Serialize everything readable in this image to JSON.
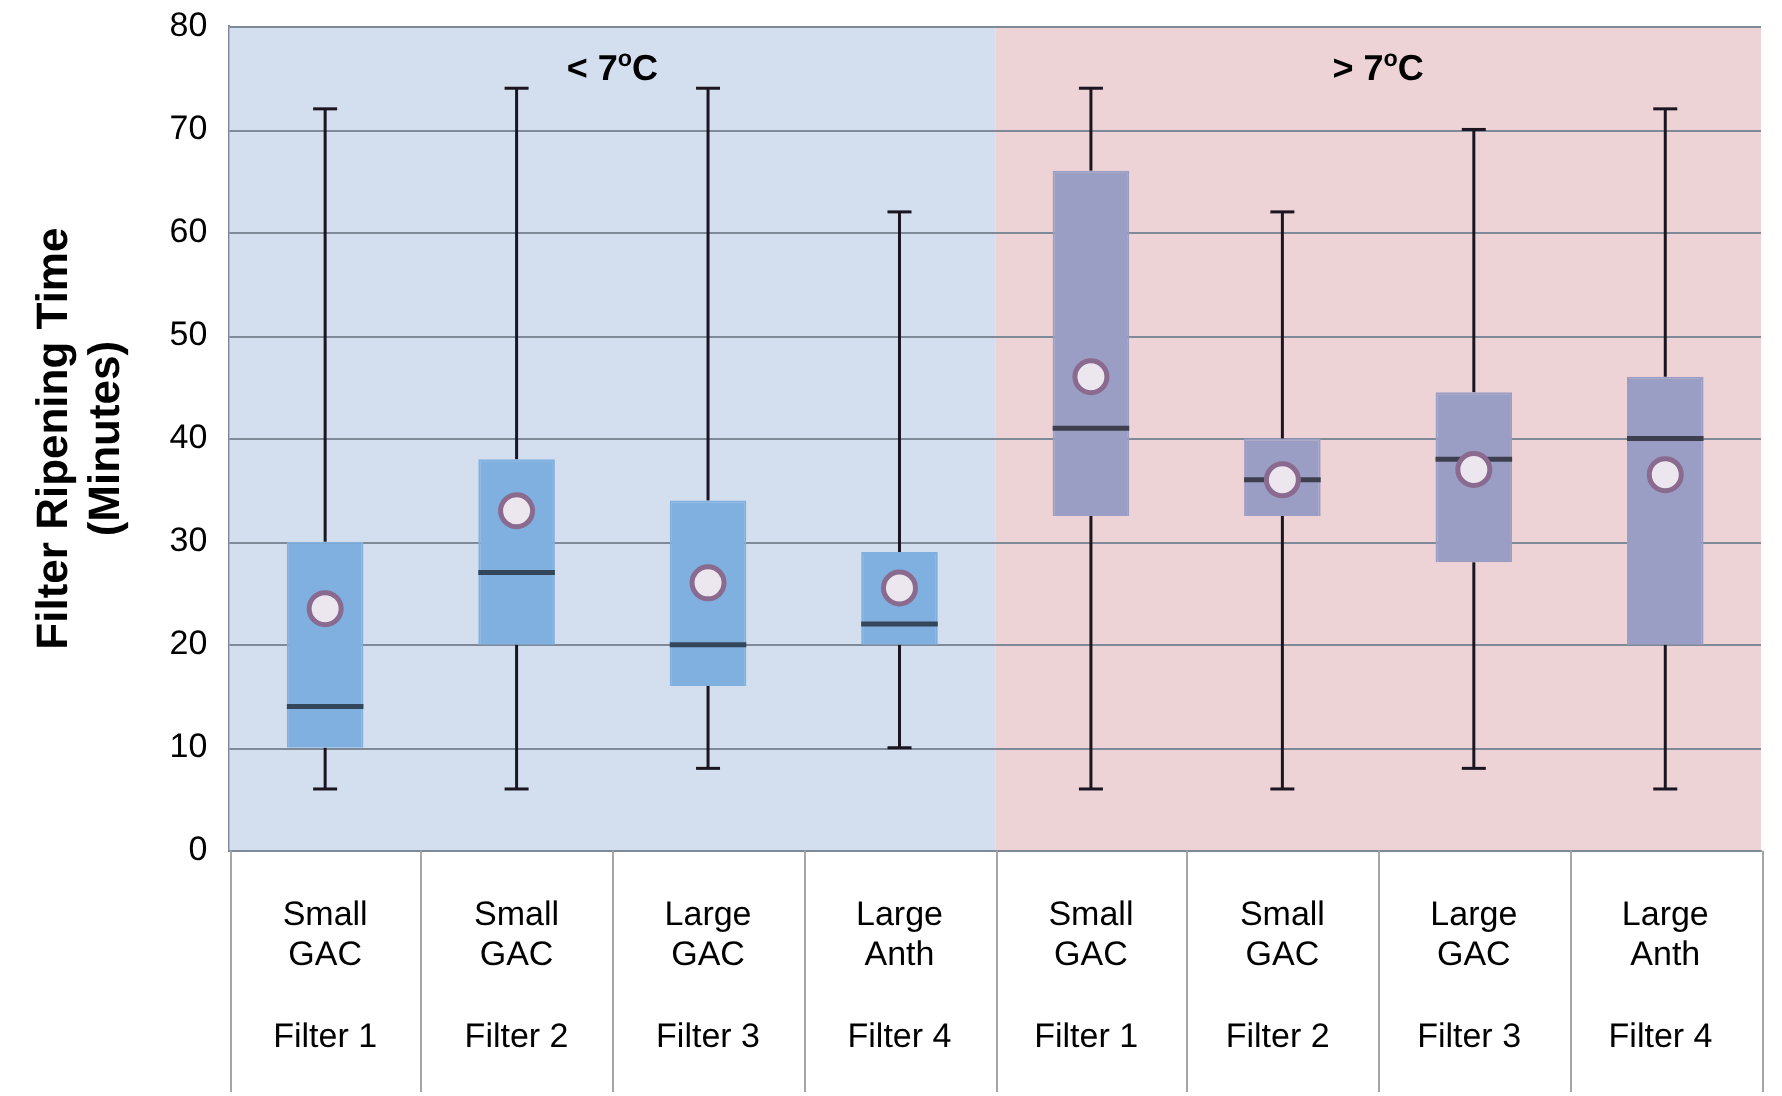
{
  "chart_data": {
    "type": "box",
    "ylabel": "Filter Ripening Time\n(Minutes)",
    "categories": [
      "Small\nGAC\n\nFilter 1",
      "Small\nGAC\n\nFilter 2",
      "Large\nGAC\n\nFilter 3",
      "Large\nAnth\n\nFilter 4",
      "Small\nGAC\n\nFilter 1 ",
      "Small\nGAC\n\nFilter 2 ",
      "Large\nGAC\n\nFilter 3 ",
      "Large\nAnth\n\nFilter 4 "
    ],
    "boxes": [
      {
        "low": 6,
        "q1": 10,
        "median": 14,
        "q3": 30,
        "high": 72,
        "mean": 23.5
      },
      {
        "low": 6,
        "q1": 20,
        "median": 27,
        "q3": 38,
        "high": 74,
        "mean": 33
      },
      {
        "low": 8,
        "q1": 16,
        "median": 20,
        "q3": 34,
        "high": 74,
        "mean": 26
      },
      {
        "low": 10,
        "q1": 20,
        "median": 22,
        "q3": 29,
        "high": 62,
        "mean": 25.5
      },
      {
        "low": 6,
        "q1": 32.5,
        "median": 41,
        "q3": 66,
        "high": 74,
        "mean": 46
      },
      {
        "low": 6,
        "q1": 32.5,
        "median": 36,
        "q3": 40,
        "high": 62,
        "mean": 36
      },
      {
        "low": 8,
        "q1": 28,
        "median": 38,
        "q3": 44.5,
        "high": 70,
        "mean": 37
      },
      {
        "low": 6,
        "q1": 20,
        "median": 40,
        "q3": 46,
        "high": 72,
        "mean": 36.5
      }
    ],
    "colors": [
      "#7fb0e0",
      "#7fb0e0",
      "#7fb0e0",
      "#7fb0e0",
      "#9a9ec4",
      "#9a9ec4",
      "#9a9ec4",
      "#9a9ec4"
    ],
    "ylim": [
      0,
      80
    ],
    "yticks": [
      0,
      10,
      20,
      30,
      40,
      50,
      60,
      70,
      80
    ],
    "grid": "y",
    "legend": false,
    "bands": [
      {
        "axis": "x",
        "from": "Small\nGAC\n\nFilter 1",
        "to": "Large\nAnth\n\nFilter 4",
        "label": "< 7$^{o}$C",
        "color": "#d3dfee"
      },
      {
        "axis": "x",
        "from": "Small\nGAC\n\nFilter 1 ",
        "to": "Large\nAnth\n\nFilter 4 ",
        "label": "> 7$^{o}$C",
        "color": "#eed3d6"
      }
    ]
  }
}
